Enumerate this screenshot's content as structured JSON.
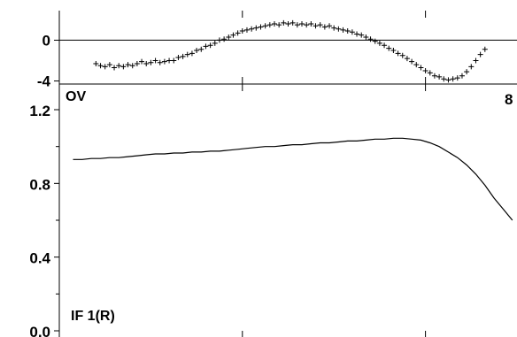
{
  "chart_data": [
    {
      "type": "scatter",
      "panel_label": "OV",
      "marker": "plus",
      "ylim": [
        -4.3,
        2.9
      ],
      "yticks": [
        0,
        -4
      ],
      "ytick_labels": [
        "0",
        "-4"
      ],
      "zero_line": true,
      "xlim": [
        0,
        100
      ],
      "points": [
        [
          8,
          -2.3
        ],
        [
          9,
          -2.5
        ],
        [
          10,
          -2.6
        ],
        [
          11,
          -2.4
        ],
        [
          12,
          -2.7
        ],
        [
          13,
          -2.5
        ],
        [
          14,
          -2.6
        ],
        [
          15,
          -2.4
        ],
        [
          16,
          -2.5
        ],
        [
          17,
          -2.3
        ],
        [
          18,
          -2.1
        ],
        [
          19,
          -2.3
        ],
        [
          20,
          -2.2
        ],
        [
          21,
          -2.0
        ],
        [
          22,
          -2.2
        ],
        [
          23,
          -2.1
        ],
        [
          24,
          -2.0
        ],
        [
          25,
          -2.0
        ],
        [
          26,
          -1.7
        ],
        [
          27,
          -1.6
        ],
        [
          28,
          -1.4
        ],
        [
          29,
          -1.3
        ],
        [
          30,
          -1.0
        ],
        [
          31,
          -0.9
        ],
        [
          32,
          -0.6
        ],
        [
          33,
          -0.5
        ],
        [
          34,
          -0.3
        ],
        [
          35,
          0.0
        ],
        [
          36,
          0.1
        ],
        [
          37,
          0.3
        ],
        [
          38,
          0.5
        ],
        [
          39,
          0.7
        ],
        [
          40,
          0.9
        ],
        [
          41,
          1.0
        ],
        [
          42,
          1.1
        ],
        [
          43,
          1.2
        ],
        [
          44,
          1.3
        ],
        [
          45,
          1.4
        ],
        [
          46,
          1.5
        ],
        [
          47,
          1.6
        ],
        [
          48,
          1.5
        ],
        [
          49,
          1.7
        ],
        [
          50,
          1.6
        ],
        [
          51,
          1.7
        ],
        [
          52,
          1.5
        ],
        [
          53,
          1.6
        ],
        [
          54,
          1.5
        ],
        [
          55,
          1.6
        ],
        [
          56,
          1.4
        ],
        [
          57,
          1.5
        ],
        [
          58,
          1.3
        ],
        [
          59,
          1.4
        ],
        [
          60,
          1.2
        ],
        [
          61,
          1.1
        ],
        [
          62,
          1.0
        ],
        [
          63,
          0.9
        ],
        [
          64,
          0.8
        ],
        [
          65,
          0.6
        ],
        [
          66,
          0.5
        ],
        [
          67,
          0.3
        ],
        [
          68,
          0.1
        ],
        [
          69,
          -0.1
        ],
        [
          70,
          -0.3
        ],
        [
          71,
          -0.5
        ],
        [
          72,
          -0.8
        ],
        [
          73,
          -1.0
        ],
        [
          74,
          -1.3
        ],
        [
          75,
          -1.5
        ],
        [
          76,
          -1.8
        ],
        [
          77,
          -2.1
        ],
        [
          78,
          -2.4
        ],
        [
          79,
          -2.7
        ],
        [
          80,
          -3.0
        ],
        [
          81,
          -3.2
        ],
        [
          82,
          -3.5
        ],
        [
          83,
          -3.6
        ],
        [
          84,
          -3.8
        ],
        [
          85,
          -3.9
        ],
        [
          86,
          -3.8
        ],
        [
          87,
          -3.7
        ],
        [
          88,
          -3.5
        ],
        [
          89,
          -3.1
        ],
        [
          90,
          -2.6
        ],
        [
          91,
          -2.0
        ],
        [
          92,
          -1.4
        ],
        [
          93,
          -0.9
        ]
      ]
    },
    {
      "type": "line",
      "panel_label": "IF 1(R)",
      "ylim": [
        0.0,
        1.2
      ],
      "yticks": [
        0.0,
        0.4,
        0.8,
        1.2
      ],
      "ytick_labels": [
        "0.0",
        "0.4",
        "0.8",
        "1.2"
      ],
      "xlim": [
        0,
        100
      ],
      "x_tick_label_right": "8",
      "points": [
        [
          3,
          0.93
        ],
        [
          5,
          0.93
        ],
        [
          7,
          0.935
        ],
        [
          9,
          0.935
        ],
        [
          11,
          0.94
        ],
        [
          13,
          0.94
        ],
        [
          15,
          0.945
        ],
        [
          17,
          0.95
        ],
        [
          19,
          0.955
        ],
        [
          21,
          0.96
        ],
        [
          23,
          0.96
        ],
        [
          25,
          0.965
        ],
        [
          27,
          0.965
        ],
        [
          29,
          0.97
        ],
        [
          31,
          0.97
        ],
        [
          33,
          0.975
        ],
        [
          35,
          0.975
        ],
        [
          37,
          0.98
        ],
        [
          39,
          0.985
        ],
        [
          41,
          0.99
        ],
        [
          43,
          0.995
        ],
        [
          45,
          1.0
        ],
        [
          47,
          1.0
        ],
        [
          49,
          1.005
        ],
        [
          51,
          1.01
        ],
        [
          53,
          1.01
        ],
        [
          55,
          1.015
        ],
        [
          57,
          1.02
        ],
        [
          59,
          1.02
        ],
        [
          61,
          1.025
        ],
        [
          63,
          1.03
        ],
        [
          65,
          1.03
        ],
        [
          67,
          1.035
        ],
        [
          69,
          1.04
        ],
        [
          71,
          1.04
        ],
        [
          73,
          1.045
        ],
        [
          75,
          1.045
        ],
        [
          77,
          1.04
        ],
        [
          79,
          1.035
        ],
        [
          81,
          1.02
        ],
        [
          83,
          1.0
        ],
        [
          85,
          0.97
        ],
        [
          87,
          0.94
        ],
        [
          89,
          0.9
        ],
        [
          91,
          0.85
        ],
        [
          93,
          0.79
        ],
        [
          95,
          0.72
        ],
        [
          97,
          0.66
        ],
        [
          99,
          0.6
        ]
      ]
    }
  ]
}
